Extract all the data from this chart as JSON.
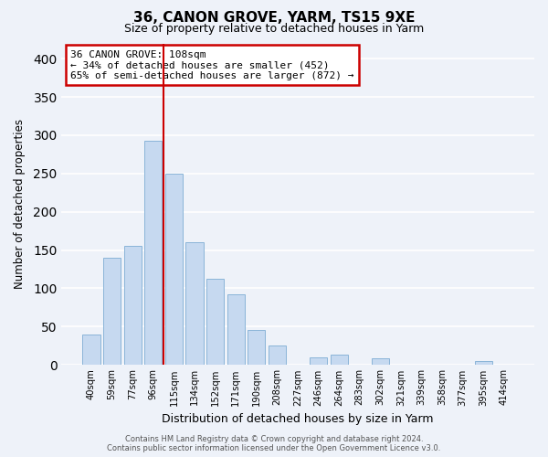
{
  "title": "36, CANON GROVE, YARM, TS15 9XE",
  "subtitle": "Size of property relative to detached houses in Yarm",
  "xlabel": "Distribution of detached houses by size in Yarm",
  "ylabel": "Number of detached properties",
  "bar_labels": [
    "40sqm",
    "59sqm",
    "77sqm",
    "96sqm",
    "115sqm",
    "134sqm",
    "152sqm",
    "171sqm",
    "190sqm",
    "208sqm",
    "227sqm",
    "246sqm",
    "264sqm",
    "283sqm",
    "302sqm",
    "321sqm",
    "339sqm",
    "358sqm",
    "377sqm",
    "395sqm",
    "414sqm"
  ],
  "bar_values": [
    40,
    140,
    155,
    293,
    250,
    160,
    113,
    92,
    46,
    25,
    0,
    10,
    13,
    0,
    8,
    0,
    0,
    0,
    0,
    5,
    0
  ],
  "bar_color": "#c6d9f0",
  "bar_edge_color": "#8ab4d8",
  "background_color": "#eef2f9",
  "grid_color": "#ffffff",
  "vline_x_index": 3.5,
  "vline_color": "#cc0000",
  "annotation_title": "36 CANON GROVE: 108sqm",
  "annotation_line1": "← 34% of detached houses are smaller (452)",
  "annotation_line2": "65% of semi-detached houses are larger (872) →",
  "annotation_box_color": "#ffffff",
  "annotation_box_edge_color": "#cc0000",
  "ylim": [
    0,
    420
  ],
  "yticks": [
    0,
    50,
    100,
    150,
    200,
    250,
    300,
    350,
    400
  ],
  "footer_line1": "Contains HM Land Registry data © Crown copyright and database right 2024.",
  "footer_line2": "Contains public sector information licensed under the Open Government Licence v3.0."
}
